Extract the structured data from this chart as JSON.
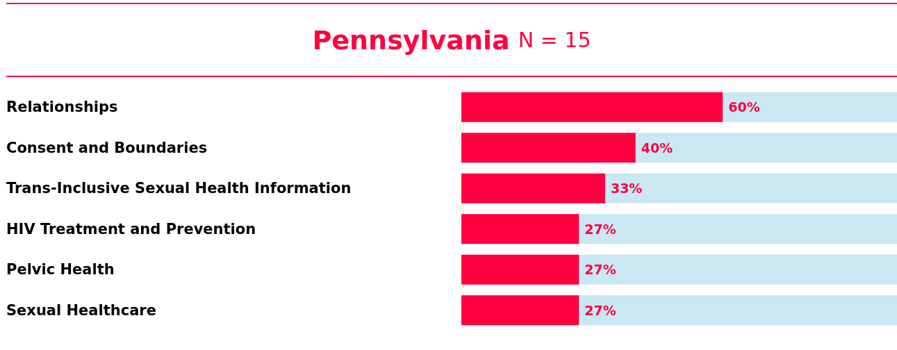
{
  "chart_data": {
    "type": "bar",
    "orientation": "horizontal",
    "stacked": true,
    "title": "Pennsylvania",
    "subtitle": "N = 15",
    "categories": [
      "Relationships",
      "Consent and Boundaries",
      "Trans-Inclusive Sexual Health Information",
      "HIV Treatment and Prevention",
      "Pelvic Health",
      "Sexual Healthcare"
    ],
    "series": [
      {
        "color": "#ff0040",
        "values": [
          60,
          40,
          33,
          27,
          27,
          27
        ],
        "value_labels": [
          "60%",
          "40%",
          "33%",
          "27%",
          "27%",
          "27%"
        ]
      },
      {
        "color": "#c9e8f4",
        "values": [
          40,
          60,
          67,
          73,
          73,
          73
        ]
      }
    ],
    "xlim": [
      0,
      100
    ],
    "tick_labels": "y",
    "grid": false
  }
}
